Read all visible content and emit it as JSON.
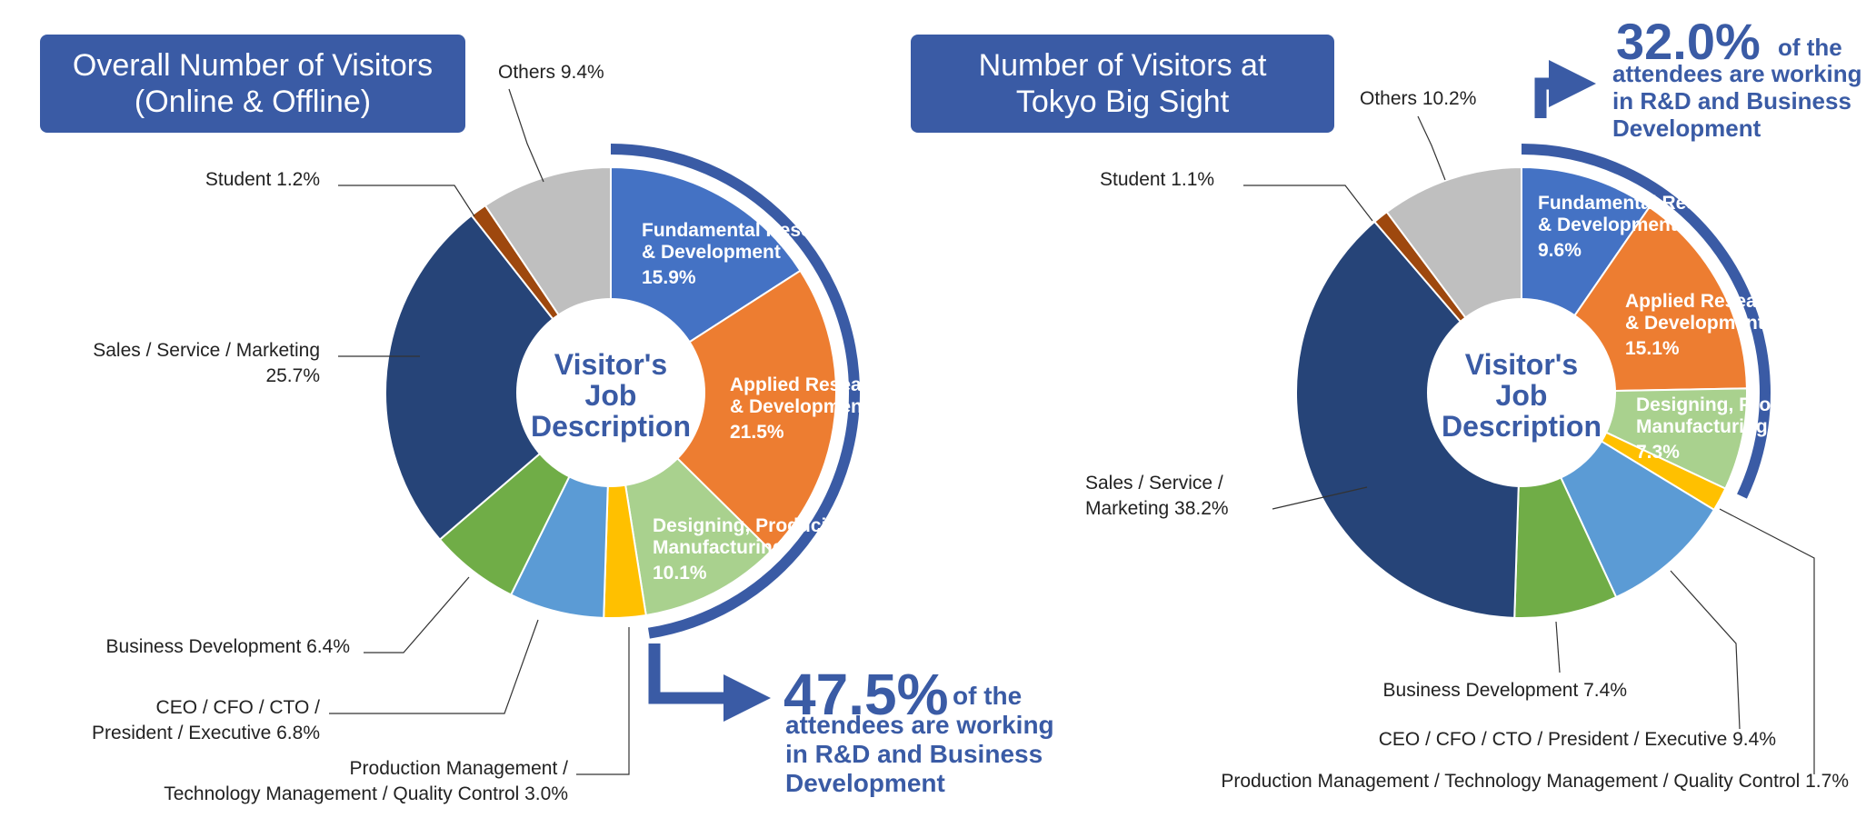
{
  "colors": {
    "title_bg": "#3a5ba5",
    "accent": "#3a5ba5",
    "fundamental": "#4472c4",
    "applied": "#ed7d31",
    "designing": "#a9d18e",
    "production": "#ffc000",
    "ceo": "#5b9bd5",
    "business": "#70ad47",
    "sales": "#264478",
    "student": "#9e480e",
    "others": "#bfbfbf"
  },
  "center_label": [
    "Visitor's",
    "Job",
    "Description"
  ],
  "chart_data": [
    {
      "type": "pie",
      "title": [
        "Overall Number of Visitors",
        "(Online & Offline)"
      ],
      "slices": [
        {
          "label": "Fundamental Research & Development",
          "value": 15.9,
          "value_text": "15.9%",
          "color_key": "fundamental",
          "inside_label": [
            "Fundamental Research",
            "& Development"
          ]
        },
        {
          "label": "Applied Research & Development",
          "value": 21.5,
          "value_text": "21.5%",
          "color_key": "applied",
          "inside_label": [
            "Applied Research",
            "& Development"
          ]
        },
        {
          "label": "Designing, Producing, Manufacturing",
          "value": 10.1,
          "value_text": "10.1%",
          "color_key": "designing",
          "inside_label": [
            "Designing, Producing,",
            "Manufacturing"
          ]
        },
        {
          "label": "Production Management / Technology Management / Quality Control",
          "value": 3.0,
          "value_text": "3.0%",
          "color_key": "production",
          "outside_label": [
            "Production Management /",
            "Technology Management / Quality Control  3.0%"
          ]
        },
        {
          "label": "CEO / CFO / CTO / President / Executive",
          "value": 6.8,
          "value_text": "6.8%",
          "color_key": "ceo",
          "outside_label": [
            "CEO / CFO / CTO /",
            "President / Executive  6.8%"
          ]
        },
        {
          "label": "Business Development",
          "value": 6.4,
          "value_text": "6.4%",
          "color_key": "business",
          "outside_label": [
            "Business Development  6.4%"
          ]
        },
        {
          "label": "Sales / Service / Marketing",
          "value": 25.7,
          "value_text": "25.7%",
          "color_key": "sales",
          "outside_label": [
            "Sales / Service / Marketing",
            "25.7%"
          ]
        },
        {
          "label": "Student",
          "value": 1.2,
          "value_text": "1.2%",
          "color_key": "student",
          "outside_label": [
            "Student  1.2%"
          ]
        },
        {
          "label": "Others",
          "value": 9.4,
          "value_text": "9.4%",
          "color_key": "others",
          "outside_label": [
            "Others  9.4%"
          ]
        }
      ],
      "highlight": {
        "value": "47.5%",
        "suffix": "of the",
        "text": [
          "attendees are working",
          "in R&D and Business",
          "Development"
        ]
      }
    },
    {
      "type": "pie",
      "title": [
        "Number of Visitors at",
        "Tokyo Big Sight"
      ],
      "slices": [
        {
          "label": "Fundamental Research & Development",
          "value": 9.6,
          "value_text": "9.6%",
          "color_key": "fundamental",
          "inside_label": [
            "Fundamental Research",
            "& Development"
          ]
        },
        {
          "label": "Applied Research & Development",
          "value": 15.1,
          "value_text": "15.1%",
          "color_key": "applied",
          "inside_label": [
            "Applied Research",
            "& Development"
          ]
        },
        {
          "label": "Designing, Producing, Manufacturing",
          "value": 7.3,
          "value_text": "7.3%",
          "color_key": "designing",
          "inside_label": [
            "Designing, Producing,",
            "Manufacturing"
          ]
        },
        {
          "label": "Production Management / Technology Management / Quality Control",
          "value": 1.7,
          "value_text": "1.7%",
          "color_key": "production",
          "outside_label": [
            "Production Management / Technology Management / Quality Control  1.7%"
          ]
        },
        {
          "label": "CEO / CFO / CTO / President / Executive",
          "value": 9.4,
          "value_text": "9.4%",
          "color_key": "ceo",
          "outside_label": [
            "CEO / CFO / CTO / President / Executive  9.4%"
          ]
        },
        {
          "label": "Business Development",
          "value": 7.4,
          "value_text": "7.4%",
          "color_key": "business",
          "outside_label": [
            "Business Development   7.4%"
          ]
        },
        {
          "label": "Sales / Service / Marketing",
          "value": 38.2,
          "value_text": "38.2%",
          "color_key": "sales",
          "outside_label": [
            "Sales / Service /",
            "Marketing  38.2%"
          ]
        },
        {
          "label": "Student",
          "value": 1.1,
          "value_text": "1.1%",
          "color_key": "student",
          "outside_label": [
            "Student  1.1%"
          ]
        },
        {
          "label": "Others",
          "value": 10.2,
          "value_text": "10.2%",
          "color_key": "others",
          "outside_label": [
            "Others  10.2%"
          ]
        }
      ],
      "highlight": {
        "value": "32.0%",
        "suffix": "of the",
        "text": [
          "attendees are working",
          "in R&D and Business",
          "Development"
        ]
      }
    }
  ]
}
